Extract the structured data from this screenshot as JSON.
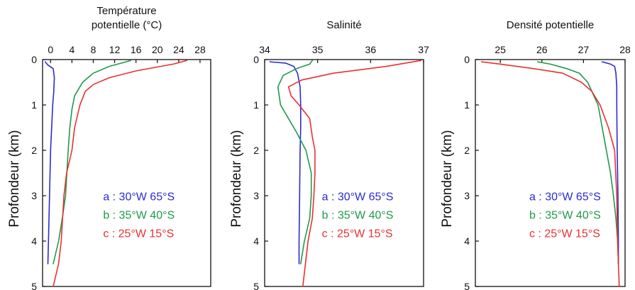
{
  "colors": {
    "a": "#2b2bd6",
    "b": "#1f9a4a",
    "c": "#e83030",
    "axis": "#111111"
  },
  "legend_entries": [
    {
      "key": "a",
      "label": "a : 30°W 65°S"
    },
    {
      "key": "b",
      "label": "b : 35°W 40°S"
    },
    {
      "key": "c",
      "label": "c : 25°W 15°S"
    }
  ],
  "chart_data": [
    {
      "type": "line",
      "title": "Température\npotentielle (°C)",
      "title_lines": [
        "Température",
        "potentielle (°C)"
      ],
      "xlabel": "",
      "ylabel": "Profondeur (km)",
      "y_inverted": true,
      "ylim": [
        0,
        5
      ],
      "xlim": [
        -1.5,
        30
      ],
      "x_ticks": [
        0,
        4,
        8,
        12,
        16,
        20,
        24,
        28
      ],
      "x_tick_labels": [
        "0",
        "4",
        "8",
        "12",
        "16",
        "20",
        "24",
        "28"
      ],
      "y_ticks": [
        0,
        1,
        2,
        3,
        4,
        5
      ],
      "y_tick_labels": [
        "0",
        "1",
        "2",
        "3",
        "4",
        "5"
      ],
      "grid": false,
      "legend_position": "lower-right",
      "series": [
        {
          "key": "a",
          "points": [
            [
              -1.0,
              0.05
            ],
            [
              -0.5,
              0.12
            ],
            [
              0.5,
              0.2
            ],
            [
              0.7,
              0.4
            ],
            [
              0.6,
              0.7
            ],
            [
              0.4,
              1.0
            ],
            [
              0.2,
              1.5
            ],
            [
              0.0,
              2.0
            ],
            [
              -0.2,
              3.0
            ],
            [
              -0.4,
              4.0
            ],
            [
              -0.5,
              4.5
            ]
          ]
        },
        {
          "key": "b",
          "points": [
            [
              15.0,
              0.02
            ],
            [
              13.5,
              0.07
            ],
            [
              11.0,
              0.15
            ],
            [
              8.0,
              0.3
            ],
            [
              6.0,
              0.5
            ],
            [
              4.5,
              0.8
            ],
            [
              4.0,
              1.1
            ],
            [
              3.6,
              1.5
            ],
            [
              3.3,
              2.0
            ],
            [
              2.8,
              3.0
            ],
            [
              2.2,
              3.5
            ],
            [
              1.5,
              4.0
            ],
            [
              0.5,
              4.5
            ]
          ]
        },
        {
          "key": "c",
          "points": [
            [
              25.5,
              0.02
            ],
            [
              23.0,
              0.1
            ],
            [
              16.0,
              0.25
            ],
            [
              11.0,
              0.4
            ],
            [
              8.0,
              0.55
            ],
            [
              6.5,
              0.7
            ],
            [
              5.5,
              1.0
            ],
            [
              4.5,
              1.5
            ],
            [
              4.0,
              2.0
            ],
            [
              3.0,
              2.5
            ],
            [
              2.5,
              3.0
            ],
            [
              2.0,
              4.0
            ],
            [
              1.5,
              4.5
            ],
            [
              0.5,
              5.0
            ]
          ]
        }
      ]
    },
    {
      "type": "line",
      "title": "Salinité",
      "title_lines": [
        "Salinité"
      ],
      "xlabel": "",
      "ylabel": "Profondeur (km)",
      "y_inverted": true,
      "ylim": [
        0,
        5
      ],
      "xlim": [
        34.0,
        37.0
      ],
      "x_ticks": [
        34,
        35,
        36,
        37
      ],
      "x_tick_labels": [
        "34",
        "35",
        "36",
        "37"
      ],
      "y_ticks": [
        0,
        1,
        2,
        3,
        4,
        5
      ],
      "y_tick_labels": [
        "0",
        "1",
        "2",
        "3",
        "4",
        "5"
      ],
      "grid": false,
      "legend_position": "lower-right",
      "series": [
        {
          "key": "a",
          "points": [
            [
              34.1,
              0.05
            ],
            [
              34.4,
              0.08
            ],
            [
              34.55,
              0.15
            ],
            [
              34.62,
              0.3
            ],
            [
              34.67,
              0.6
            ],
            [
              34.68,
              1.0
            ],
            [
              34.68,
              1.5
            ],
            [
              34.67,
              2.0
            ],
            [
              34.66,
              3.0
            ],
            [
              34.65,
              4.0
            ],
            [
              34.65,
              4.5
            ]
          ]
        },
        {
          "key": "b",
          "points": [
            [
              34.9,
              0.02
            ],
            [
              34.85,
              0.1
            ],
            [
              34.6,
              0.2
            ],
            [
              34.35,
              0.35
            ],
            [
              34.25,
              0.6
            ],
            [
              34.3,
              1.0
            ],
            [
              34.45,
              1.3
            ],
            [
              34.6,
              1.6
            ],
            [
              34.78,
              2.0
            ],
            [
              34.88,
              2.5
            ],
            [
              34.88,
              3.0
            ],
            [
              34.85,
              3.5
            ],
            [
              34.75,
              4.0
            ],
            [
              34.68,
              4.5
            ]
          ]
        },
        {
          "key": "c",
          "points": [
            [
              36.95,
              0.02
            ],
            [
              36.3,
              0.15
            ],
            [
              35.3,
              0.3
            ],
            [
              34.7,
              0.45
            ],
            [
              34.45,
              0.6
            ],
            [
              34.5,
              0.8
            ],
            [
              34.65,
              1.0
            ],
            [
              34.85,
              1.3
            ],
            [
              34.9,
              1.7
            ],
            [
              34.95,
              2.0
            ],
            [
              34.95,
              2.5
            ],
            [
              34.93,
              3.0
            ],
            [
              34.9,
              3.5
            ],
            [
              34.82,
              4.0
            ],
            [
              34.77,
              4.5
            ],
            [
              34.72,
              5.0
            ]
          ]
        }
      ]
    },
    {
      "type": "line",
      "title": "Densité potentielle",
      "title_lines": [
        "Densité potentielle"
      ],
      "xlabel": "",
      "ylabel": "Profondeur (km)",
      "y_inverted": true,
      "ylim": [
        0,
        5
      ],
      "xlim": [
        24.4,
        28.0
      ],
      "x_ticks": [
        25,
        26,
        27,
        28
      ],
      "x_tick_labels": [
        "25",
        "26",
        "27",
        "28"
      ],
      "y_ticks": [
        0,
        1,
        2,
        3,
        4,
        5
      ],
      "y_tick_labels": [
        "0",
        "1",
        "2",
        "3",
        "4",
        "5"
      ],
      "grid": false,
      "legend_position": "lower-right",
      "series": [
        {
          "key": "a",
          "points": [
            [
              27.45,
              0.05
            ],
            [
              27.65,
              0.1
            ],
            [
              27.75,
              0.15
            ],
            [
              27.78,
              0.3
            ],
            [
              27.8,
              0.6
            ],
            [
              27.8,
              1.0
            ],
            [
              27.81,
              2.0
            ],
            [
              27.83,
              3.0
            ],
            [
              27.84,
              4.0
            ],
            [
              27.84,
              4.5
            ]
          ]
        },
        {
          "key": "b",
          "points": [
            [
              25.9,
              0.05
            ],
            [
              26.2,
              0.1
            ],
            [
              26.6,
              0.2
            ],
            [
              26.9,
              0.3
            ],
            [
              27.1,
              0.5
            ],
            [
              27.25,
              0.8
            ],
            [
              27.35,
              1.0
            ],
            [
              27.45,
              1.5
            ],
            [
              27.55,
              2.0
            ],
            [
              27.65,
              2.5
            ],
            [
              27.72,
              3.0
            ],
            [
              27.78,
              3.5
            ],
            [
              27.82,
              4.0
            ],
            [
              27.84,
              4.5
            ]
          ]
        },
        {
          "key": "c",
          "points": [
            [
              24.55,
              0.05
            ],
            [
              25.0,
              0.1
            ],
            [
              25.8,
              0.2
            ],
            [
              26.5,
              0.3
            ],
            [
              26.95,
              0.5
            ],
            [
              27.2,
              0.7
            ],
            [
              27.4,
              1.0
            ],
            [
              27.6,
              1.5
            ],
            [
              27.75,
              2.0
            ],
            [
              27.8,
              3.0
            ],
            [
              27.82,
              4.0
            ],
            [
              27.84,
              4.5
            ],
            [
              27.86,
              5.0
            ]
          ]
        }
      ]
    }
  ]
}
